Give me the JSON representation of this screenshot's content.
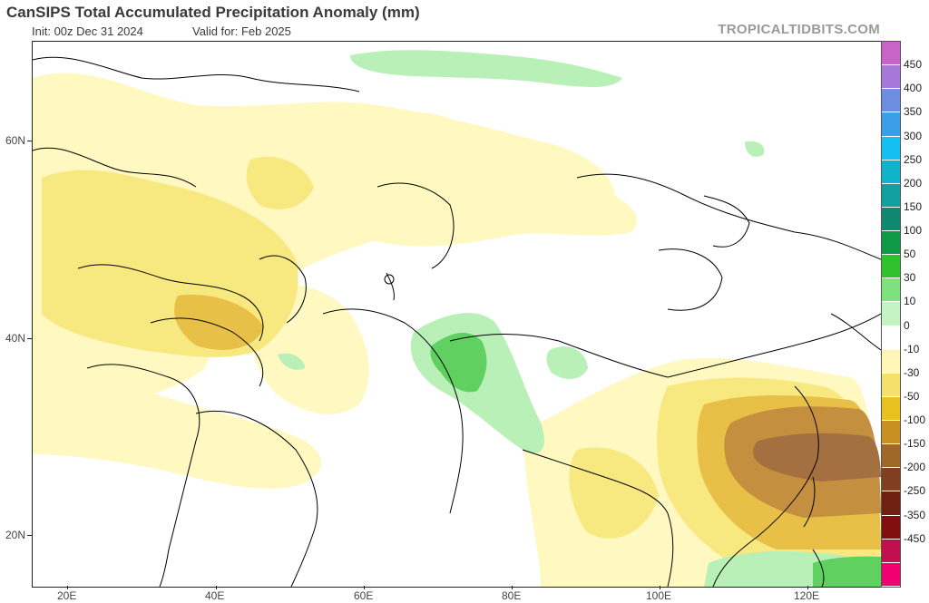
{
  "header": {
    "title": "CanSIPS Total Accumulated Precipitation Anomaly (mm)",
    "init": "Init: 00z Dec 31 2024",
    "valid": "Valid for: Feb 2025",
    "brand": "TROPICALTIDBITS.COM"
  },
  "axes": {
    "lat_labels": [
      "60N",
      "40N",
      "20N"
    ],
    "lon_labels": [
      "20E",
      "40E",
      "60E",
      "80E",
      "100E",
      "120E"
    ]
  },
  "colorbar": {
    "labels": [
      "450",
      "400",
      "350",
      "300",
      "250",
      "200",
      "150",
      "100",
      "50",
      "30",
      "10",
      "0",
      "-10",
      "-30",
      "-50",
      "-100",
      "-150",
      "-200",
      "-250",
      "-350",
      "-450"
    ],
    "colors": [
      "#c864c8",
      "#a878d8",
      "#6c8ee0",
      "#3c9ee8",
      "#14c0f0",
      "#10b4c8",
      "#10a0a0",
      "#108870",
      "#0c9a48",
      "#30c030",
      "#7ee07e",
      "#c4f4c4",
      "#ffffff",
      "#fff6b8",
      "#f4e06c",
      "#e8c020",
      "#c89020",
      "#a06828",
      "#804020",
      "#702010",
      "#801010",
      "#c01050",
      "#f00070"
    ],
    "color_names": {
      "positive": "green-blue-purple",
      "negative": "yellow-brown-red"
    }
  },
  "map": {
    "region": "Europe / Middle East / Asia",
    "lon_range": [
      15,
      130
    ],
    "lat_range": [
      14,
      70
    ],
    "notable_anomalies": [
      {
        "area": "Eastern China",
        "category": "-100 to -150"
      },
      {
        "area": "Northwest India / Karakoram",
        "category": "10 to 30"
      },
      {
        "area": "Eastern Europe / Russia",
        "category": "-10"
      },
      {
        "area": "Arctic coast",
        "category": "10"
      }
    ]
  }
}
